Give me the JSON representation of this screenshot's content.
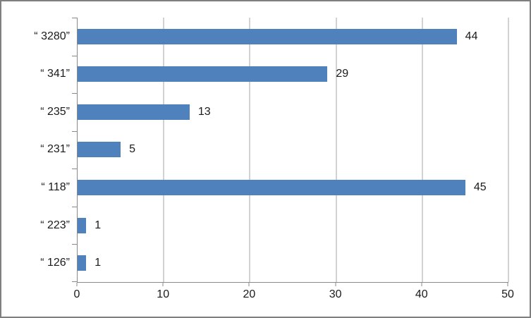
{
  "chart_data": {
    "type": "bar",
    "orientation": "horizontal",
    "title": "",
    "xlabel": "",
    "ylabel": "",
    "categories": [
      "“ 3280”",
      "“ 341”",
      "“ 235”",
      "“ 231”",
      "“ 118”",
      "“ 223”",
      "“ 126”"
    ],
    "values": [
      44,
      29,
      13,
      5,
      45,
      1,
      1
    ],
    "data_labels": [
      "44",
      "29",
      "13",
      "5",
      "45",
      "1",
      "1"
    ],
    "xlim": [
      0,
      50
    ],
    "x_ticks": [
      0,
      10,
      20,
      30,
      40,
      50
    ],
    "x_tick_labels": [
      "0",
      "10",
      "20",
      "30",
      "40",
      "50"
    ],
    "grid": "vertical-gridlines",
    "legend": "none",
    "colors": {
      "bar": "#4f81bd",
      "gridline": "#a6a6a6",
      "axis": "#898989",
      "text": "#1a1a1a",
      "background": "#ffffff",
      "figure_border": "#7f7f7f"
    }
  }
}
